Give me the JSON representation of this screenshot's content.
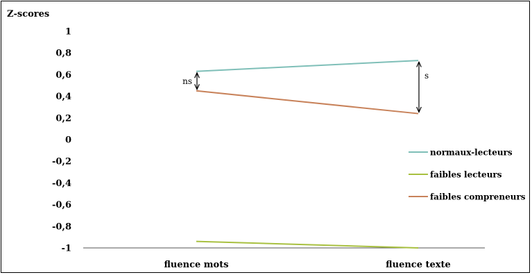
{
  "chart_data": {
    "type": "line",
    "ylabel": "Z-scores",
    "categories": [
      "fluence mots",
      "fluence texte"
    ],
    "ylim": [
      -1,
      1
    ],
    "yticks": [
      "1",
      "0,8",
      "0,6",
      "0,4",
      "0,2",
      "0",
      "-0,2",
      "-0,4",
      "-0,6",
      "-0,8",
      "-1"
    ],
    "ytick_values": [
      1,
      0.8,
      0.6,
      0.4,
      0.2,
      0,
      -0.2,
      -0.4,
      -0.6,
      -0.8,
      -1
    ],
    "grid": false,
    "legend_position": "right",
    "series": [
      {
        "name": "normaux-lecteurs",
        "color": "#7fbfb8",
        "values": [
          0.63,
          0.73
        ]
      },
      {
        "name": "faibles lecteurs",
        "color": "#a8c040",
        "values": [
          -0.94,
          -1.0
        ]
      },
      {
        "name": "faibles compreneurs",
        "color": "#c8825a",
        "values": [
          0.45,
          0.24
        ]
      }
    ],
    "annotations": [
      {
        "label": "ns",
        "category": "fluence mots",
        "from": 0.45,
        "to": 0.63
      },
      {
        "label": "s",
        "category": "fluence texte",
        "from": 0.24,
        "to": 0.73
      }
    ]
  }
}
